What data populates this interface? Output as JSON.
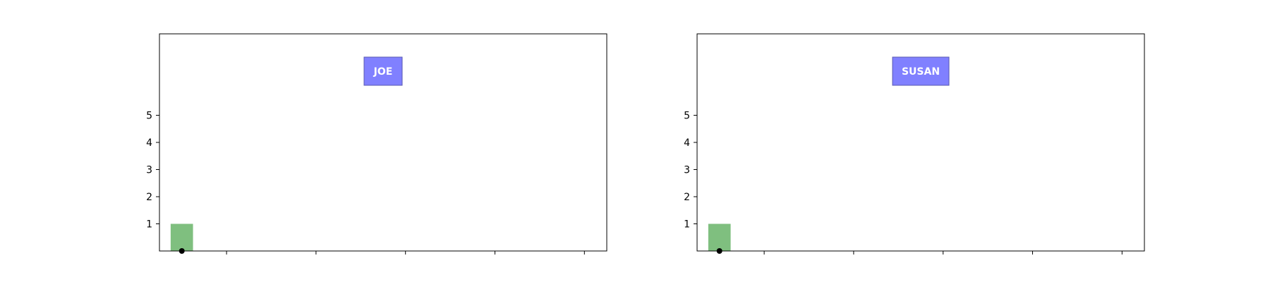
{
  "chart_data": [
    {
      "type": "bar",
      "panel_label": "JOE",
      "categories": [
        "0"
      ],
      "values": [
        1
      ],
      "points": [
        {
          "x": 0,
          "y": 0
        }
      ],
      "yticks": [
        1,
        2,
        3,
        4,
        5
      ],
      "ylim": [
        0,
        8
      ],
      "xlim": [
        -0.5,
        9.5
      ],
      "xticks": [
        1,
        3,
        5,
        7,
        9
      ],
      "xtick_labels": [
        "",
        "",
        "",
        "",
        ""
      ],
      "bar_color": "#7fbf7f",
      "point_color": "#000000",
      "label_box_color": "#8080ff"
    },
    {
      "type": "bar",
      "panel_label": "SUSAN",
      "categories": [
        "0"
      ],
      "values": [
        1
      ],
      "points": [
        {
          "x": 0,
          "y": 0
        }
      ],
      "yticks": [
        1,
        2,
        3,
        4,
        5
      ],
      "ylim": [
        0,
        8
      ],
      "xlim": [
        -0.5,
        9.5
      ],
      "xticks": [
        1,
        3,
        5,
        7,
        9
      ],
      "xtick_labels": [
        "",
        "",
        "",
        "",
        ""
      ],
      "bar_color": "#7fbf7f",
      "point_color": "#000000",
      "label_box_color": "#8080ff"
    }
  ]
}
